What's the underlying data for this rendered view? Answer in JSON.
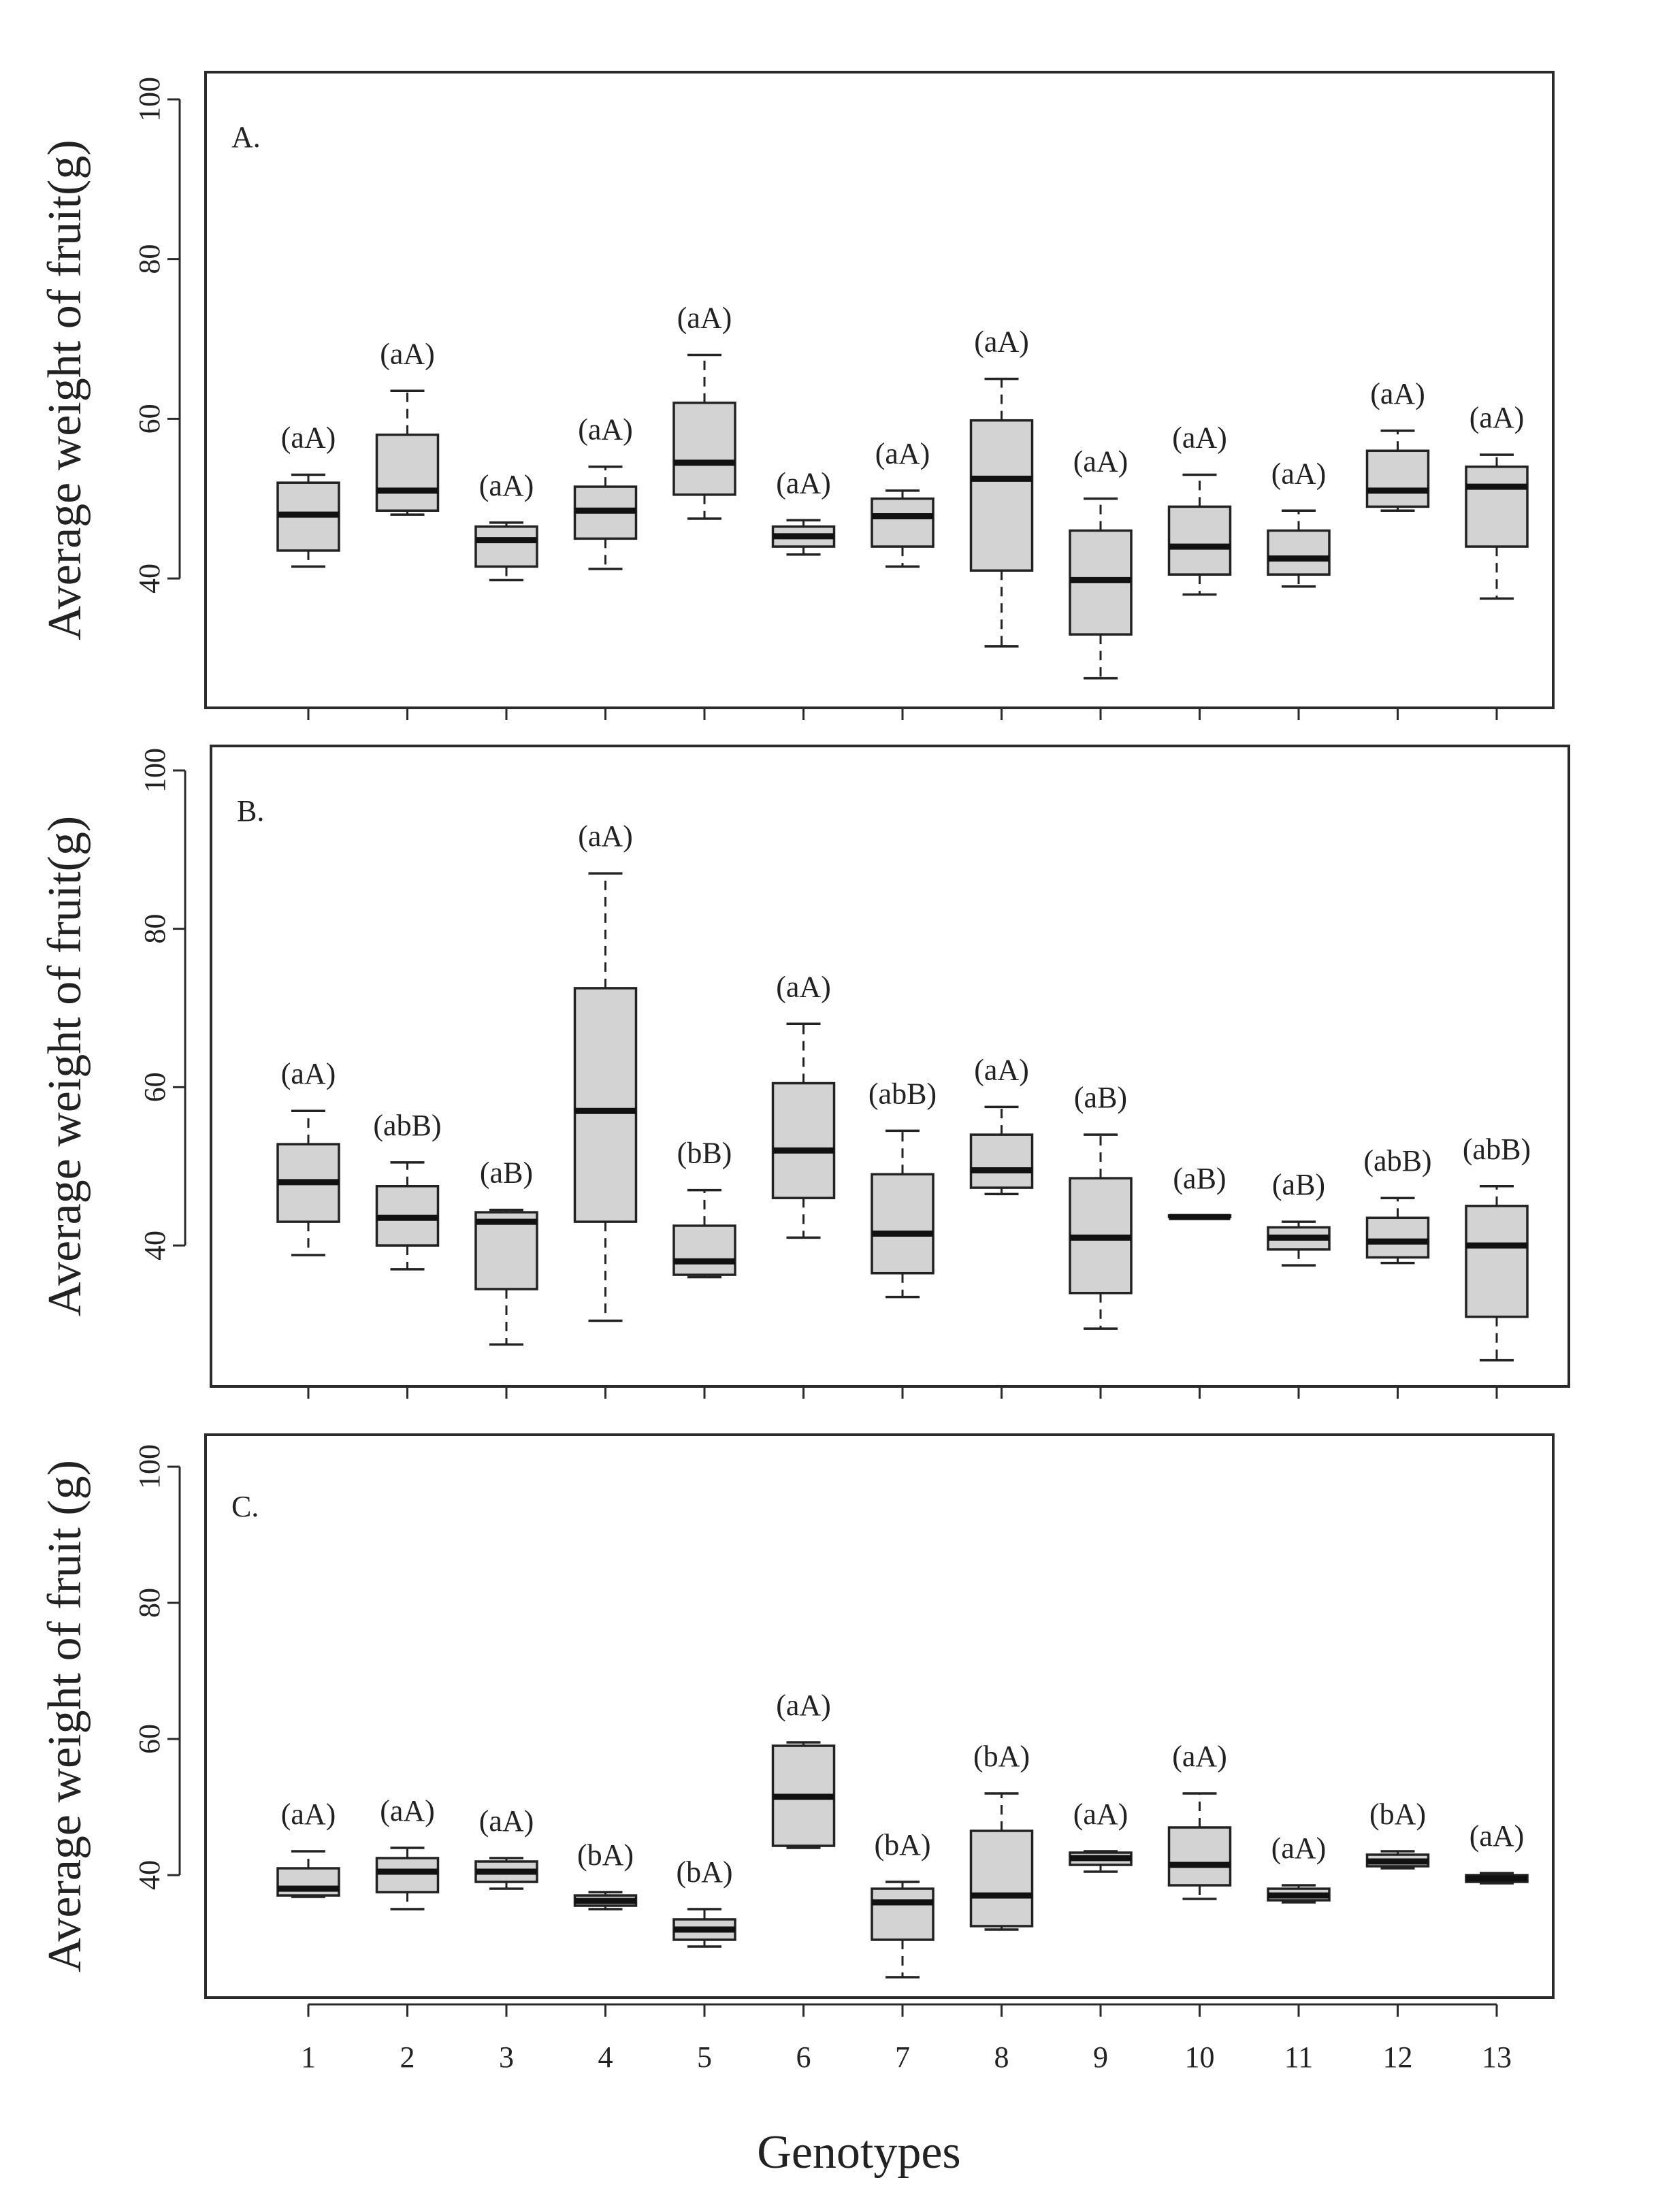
{
  "colors": {
    "box_fill": "#d3d3d3",
    "line": "#222222",
    "background": "#ffffff"
  },
  "chart_data": [
    {
      "type": "box",
      "panel": "A.",
      "ylabel": "Average weight of fruit(g)",
      "xlabel": "",
      "categories": [
        "1",
        "2",
        "3",
        "4",
        "5",
        "6",
        "7",
        "8",
        "9",
        "10",
        "11",
        "12",
        "13"
      ],
      "yticks": [
        40,
        60,
        80,
        100
      ],
      "ylim": [
        22,
        105
      ],
      "show_xtick_labels": false,
      "boxes": [
        {
          "min": 41.5,
          "q1": 43.5,
          "median": 48.0,
          "q3": 52.0,
          "max": 53.0,
          "letters": "(aA)"
        },
        {
          "min": 48.0,
          "q1": 48.5,
          "median": 51.0,
          "q3": 58.0,
          "max": 63.5,
          "letters": "(aA)"
        },
        {
          "min": 39.8,
          "q1": 41.5,
          "median": 44.8,
          "q3": 46.5,
          "max": 47.0,
          "letters": "(aA)"
        },
        {
          "min": 41.2,
          "q1": 45.0,
          "median": 48.5,
          "q3": 51.5,
          "max": 54.0,
          "letters": "(aA)"
        },
        {
          "min": 47.5,
          "q1": 50.5,
          "median": 54.5,
          "q3": 62.0,
          "max": 68.0,
          "letters": "(aA)"
        },
        {
          "min": 43.0,
          "q1": 44.0,
          "median": 45.3,
          "q3": 46.5,
          "max": 47.3,
          "letters": "(aA)"
        },
        {
          "min": 41.5,
          "q1": 44.0,
          "median": 47.8,
          "q3": 50.0,
          "max": 51.0,
          "letters": "(aA)"
        },
        {
          "min": 31.5,
          "q1": 41.0,
          "median": 52.5,
          "q3": 59.8,
          "max": 65.0,
          "letters": "(aA)"
        },
        {
          "min": 27.5,
          "q1": 33.0,
          "median": 39.8,
          "q3": 46.0,
          "max": 50.0,
          "letters": "(aA)"
        },
        {
          "min": 38.0,
          "q1": 40.5,
          "median": 44.0,
          "q3": 49.0,
          "max": 53.0,
          "letters": "(aA)"
        },
        {
          "min": 39.0,
          "q1": 40.5,
          "median": 42.5,
          "q3": 46.0,
          "max": 48.5,
          "letters": "(aA)"
        },
        {
          "min": 48.5,
          "q1": 49.0,
          "median": 51.0,
          "q3": 56.0,
          "max": 58.5,
          "letters": "(aA)"
        },
        {
          "min": 37.5,
          "q1": 44.0,
          "median": 51.5,
          "q3": 54.0,
          "max": 55.5,
          "letters": "(aA)"
        }
      ]
    },
    {
      "type": "box",
      "panel": "B.",
      "ylabel": "Average weight of fruit(g)",
      "xlabel": "",
      "categories": [
        "1",
        "2",
        "3",
        "4",
        "5",
        "6",
        "7",
        "8",
        "9",
        "10",
        "11",
        "12",
        "13"
      ],
      "yticks": [
        40,
        60,
        80,
        100
      ],
      "ylim": [
        22,
        105
      ],
      "show_xtick_labels": false,
      "boxes": [
        {
          "min": 38.8,
          "q1": 43.0,
          "median": 48.0,
          "q3": 52.8,
          "max": 57.0,
          "letters": "(aA)"
        },
        {
          "min": 37.0,
          "q1": 40.0,
          "median": 43.5,
          "q3": 47.5,
          "max": 50.5,
          "letters": "(abB)"
        },
        {
          "min": 27.5,
          "q1": 34.5,
          "median": 43.0,
          "q3": 44.2,
          "max": 44.5,
          "letters": "(aB)"
        },
        {
          "min": 30.5,
          "q1": 43.0,
          "median": 57.0,
          "q3": 72.5,
          "max": 87.0,
          "letters": "(aA)"
        },
        {
          "min": 36.0,
          "q1": 36.3,
          "median": 38.0,
          "q3": 42.5,
          "max": 47.0,
          "letters": "(bB)"
        },
        {
          "min": 41.0,
          "q1": 46.0,
          "median": 52.0,
          "q3": 60.5,
          "max": 68.0,
          "letters": "(aA)"
        },
        {
          "min": 33.5,
          "q1": 36.5,
          "median": 41.5,
          "q3": 49.0,
          "max": 54.5,
          "letters": "(abB)"
        },
        {
          "min": 46.5,
          "q1": 47.3,
          "median": 49.5,
          "q3": 54.0,
          "max": 57.5,
          "letters": "(aA)"
        },
        {
          "min": 29.5,
          "q1": 34.0,
          "median": 41.0,
          "q3": 48.5,
          "max": 54.0,
          "letters": "(aB)"
        },
        {
          "min": 43.6,
          "q1": 43.6,
          "median": 43.6,
          "q3": 43.8,
          "max": 43.8,
          "letters": "(aB)"
        },
        {
          "min": 37.5,
          "q1": 39.5,
          "median": 41.0,
          "q3": 42.3,
          "max": 43.0,
          "letters": "(aB)"
        },
        {
          "min": 37.8,
          "q1": 38.5,
          "median": 40.5,
          "q3": 43.5,
          "max": 46.0,
          "letters": "(abB)"
        },
        {
          "min": 25.5,
          "q1": 31.0,
          "median": 40.0,
          "q3": 45.0,
          "max": 47.5,
          "letters": "(abB)"
        }
      ]
    },
    {
      "type": "box",
      "panel": "C.",
      "ylabel": "Average weight of fruit (g)",
      "xlabel": "Genotypes",
      "categories": [
        "1",
        "2",
        "3",
        "4",
        "5",
        "6",
        "7",
        "8",
        "9",
        "10",
        "11",
        "12",
        "13"
      ],
      "yticks": [
        40,
        60,
        80,
        100
      ],
      "ylim": [
        22,
        105
      ],
      "show_xtick_labels": true,
      "boxes": [
        {
          "min": 36.8,
          "q1": 37.0,
          "median": 38.0,
          "q3": 41.0,
          "max": 43.5,
          "letters": "(aA)"
        },
        {
          "min": 35.0,
          "q1": 37.5,
          "median": 40.5,
          "q3": 42.5,
          "max": 44.0,
          "letters": "(aA)"
        },
        {
          "min": 38.0,
          "q1": 39.0,
          "median": 40.5,
          "q3": 42.0,
          "max": 42.5,
          "letters": "(aA)"
        },
        {
          "min": 35.0,
          "q1": 35.5,
          "median": 36.2,
          "q3": 37.0,
          "max": 37.5,
          "letters": "(bA)"
        },
        {
          "min": 29.5,
          "q1": 30.5,
          "median": 32.0,
          "q3": 33.5,
          "max": 35.0,
          "letters": "(bA)"
        },
        {
          "min": 44.0,
          "q1": 44.3,
          "median": 51.5,
          "q3": 59.0,
          "max": 59.5,
          "letters": "(aA)"
        },
        {
          "min": 25.0,
          "q1": 30.5,
          "median": 36.0,
          "q3": 38.0,
          "max": 39.0,
          "letters": "(bA)"
        },
        {
          "min": 32.0,
          "q1": 32.5,
          "median": 37.0,
          "q3": 46.5,
          "max": 52.0,
          "letters": "(bA)"
        },
        {
          "min": 40.5,
          "q1": 41.5,
          "median": 42.5,
          "q3": 43.3,
          "max": 43.5,
          "letters": "(aA)"
        },
        {
          "min": 36.5,
          "q1": 38.5,
          "median": 41.5,
          "q3": 47.0,
          "max": 52.0,
          "letters": "(aA)"
        },
        {
          "min": 36.0,
          "q1": 36.3,
          "median": 37.0,
          "q3": 38.0,
          "max": 38.5,
          "letters": "(aA)"
        },
        {
          "min": 41.0,
          "q1": 41.3,
          "median": 42.0,
          "q3": 43.0,
          "max": 43.5,
          "letters": "(bA)"
        },
        {
          "min": 38.8,
          "q1": 39.0,
          "median": 39.5,
          "q3": 40.0,
          "max": 40.3,
          "letters": "(aA)"
        }
      ]
    }
  ]
}
